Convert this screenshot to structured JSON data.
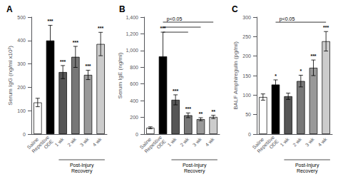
{
  "chart_data": [
    {
      "type": "bar",
      "title": "A",
      "y_label": "Serum IgG (ng/ml x10²)",
      "categories": [
        "Saline",
        "Repetitive\nODE",
        "1 wk",
        "2 wk",
        "3 wk",
        "4 wk"
      ],
      "values": [
        135,
        400,
        265,
        330,
        253,
        385
      ],
      "errors": [
        18,
        65,
        28,
        45,
        20,
        50
      ],
      "colors": [
        "white",
        "black",
        "#555555",
        "#777777",
        "#999999",
        "#cccccc"
      ],
      "stars": [
        null,
        "***",
        "***",
        "***",
        "***",
        "***"
      ],
      "significance_lines": [],
      "group": {
        "label": "Post-Injury\nRecovery",
        "from": "1 wk",
        "to": "4 wk"
      },
      "ylim": [
        0,
        500
      ],
      "yticks": [
        0,
        100,
        200,
        300,
        400,
        500
      ],
      "grid": false
    },
    {
      "type": "bar",
      "title": "B",
      "y_label": "Serum IgE (ng/ml)",
      "categories": [
        "Saline",
        "Repetitive\nODE",
        "1 wk",
        "2 wk",
        "3 wk",
        "4 wk"
      ],
      "values": [
        75,
        930,
        410,
        225,
        178,
        205
      ],
      "errors": [
        12,
        290,
        60,
        28,
        18,
        20
      ],
      "colors": [
        "white",
        "black",
        "#555555",
        "#777777",
        "#999999",
        "#cccccc"
      ],
      "stars": [
        null,
        "***",
        "***",
        "***",
        "**",
        "**"
      ],
      "significance_lines": [
        {
          "from": "Repetitive\nODE",
          "to": "4 wk",
          "y": 1340,
          "label": "p<0.05"
        },
        {
          "from": "Repetitive\nODE",
          "to": "3 wk",
          "y": 1280
        },
        {
          "from": "Repetitive\nODE",
          "to": "2 wk",
          "y": 1220
        }
      ],
      "group": {
        "label": "Post-Injury\nRecovery",
        "from": "1 wk",
        "to": "4 wk"
      },
      "ylim": [
        0,
        1400
      ],
      "yticks": [
        0,
        200,
        400,
        600,
        800,
        1000,
        1200,
        1400
      ],
      "grid": false
    },
    {
      "type": "bar",
      "title": "C",
      "y_label": "BALF Amphiregulin (pg/ml)",
      "categories": [
        "Saline",
        "Repetitive\nODE",
        "1 wk",
        "2 wk",
        "3 wk",
        "4 wk"
      ],
      "values": [
        95,
        127,
        97,
        136,
        170,
        238
      ],
      "errors": [
        8,
        12,
        8,
        15,
        20,
        25
      ],
      "colors": [
        "white",
        "black",
        "#555555",
        "#777777",
        "#999999",
        "#cccccc"
      ],
      "stars": [
        null,
        "*",
        null,
        "*",
        "***",
        "***"
      ],
      "significance_lines": [
        {
          "from": "Repetitive\nODE",
          "to": "4 wk",
          "y": 287,
          "label": "p<0.05"
        }
      ],
      "group": {
        "label": "Post-Injury\nRecovery",
        "from": "1 wk",
        "to": "4 wk"
      },
      "ylim": [
        0,
        300
      ],
      "yticks": [
        0,
        50,
        100,
        150,
        200,
        250,
        300
      ],
      "grid": false
    }
  ]
}
